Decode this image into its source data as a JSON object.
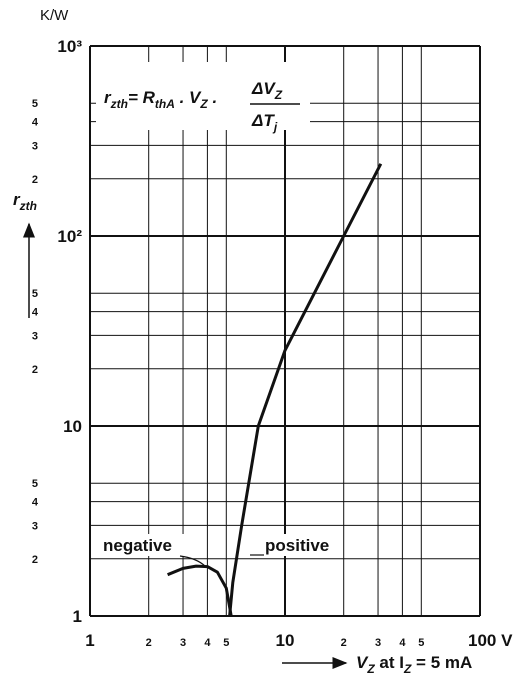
{
  "chart_data": {
    "type": "line",
    "y_unit": "K/W",
    "y_label": {
      "text": "r",
      "sub": "zth"
    },
    "x_label": [
      {
        "text": "V",
        "sub": "Z"
      },
      {
        "text": " at I",
        "sub": "Z"
      },
      {
        "text": " = 5 mA"
      }
    ],
    "formula": {
      "lhs": [
        {
          "text": "r",
          "sub": "zth"
        },
        {
          "text": "= R",
          "sub": "thA"
        },
        {
          "text": " . V",
          "sub": "Z"
        },
        {
          "text": " ."
        }
      ],
      "numerator": {
        "text": "ΔV",
        "sub": "Z"
      },
      "denominator": {
        "text": "ΔT",
        "sub": "j"
      }
    },
    "xscale": "log",
    "yscale": "log",
    "grid": true,
    "color": "#111",
    "xlim": [
      1,
      100
    ],
    "ylim": [
      1,
      1000
    ],
    "xticks": [
      1,
      2,
      3,
      4,
      5,
      10,
      {
        "value": 20,
        "label": "2"
      },
      {
        "value": 30,
        "label": "3"
      },
      {
        "value": 40,
        "label": "4"
      },
      {
        "value": 50,
        "label": "5"
      },
      {
        "value": 100,
        "label": "100 V"
      }
    ],
    "yticks": [
      1,
      2,
      3,
      4,
      5,
      10,
      {
        "value": 20,
        "label": "2"
      },
      {
        "value": 30,
        "label": "3"
      },
      {
        "value": 40,
        "label": "4"
      },
      {
        "value": 50,
        "label": "5"
      },
      {
        "value": 100,
        "label": "10²"
      },
      {
        "value": 200,
        "label": "2"
      },
      {
        "value": 300,
        "label": "3"
      },
      {
        "value": 400,
        "label": "4"
      },
      {
        "value": 500,
        "label": "5"
      },
      {
        "value": 1000,
        "label": "10³"
      }
    ],
    "series": [
      {
        "name": "negative",
        "x": [
          2.5,
          3,
          3.5,
          4,
          4.5,
          5,
          5.3
        ],
        "values": [
          1.65,
          1.78,
          1.83,
          1.82,
          1.7,
          1.4,
          1
        ]
      },
      {
        "name": "positive",
        "x": [
          5.2,
          5.4,
          6,
          7.3,
          10,
          20,
          31
        ],
        "values": [
          1,
          1.5,
          3,
          10,
          25,
          100,
          240
        ]
      }
    ]
  }
}
